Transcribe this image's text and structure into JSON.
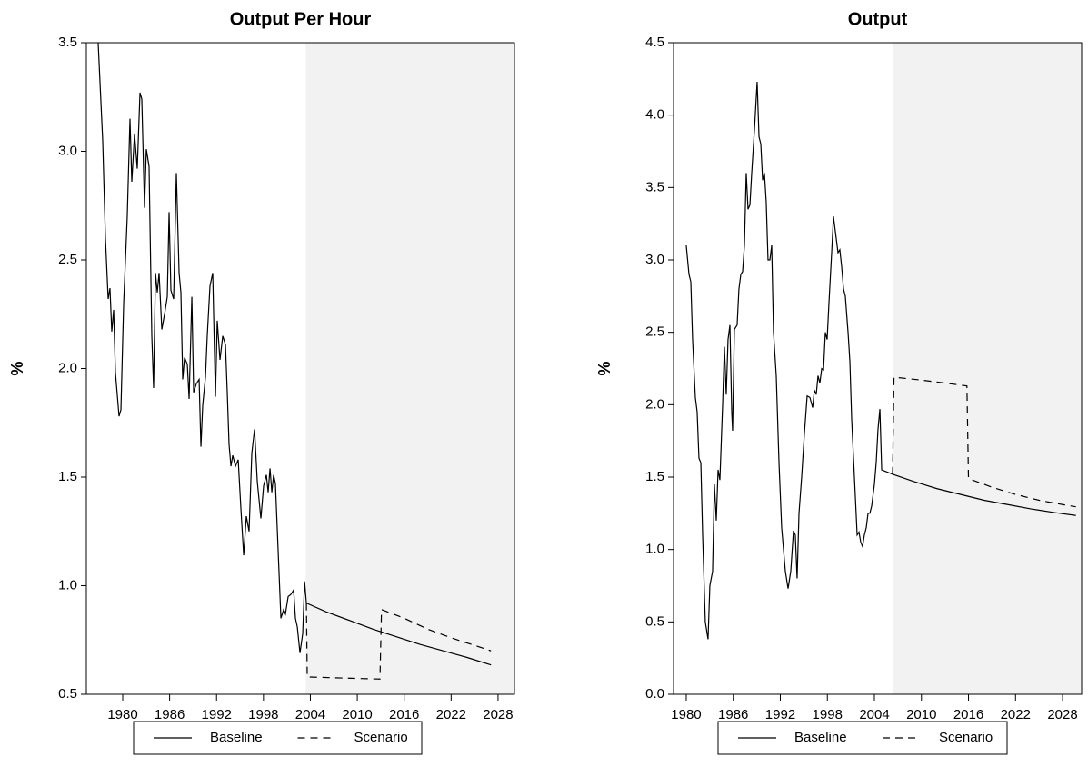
{
  "chart_data": [
    {
      "type": "line",
      "title": "Output Per Hour",
      "y_label": "%",
      "xlim": [
        1975.35,
        2030.1
      ],
      "ylim": [
        0.5,
        3.5
      ],
      "xticks": [
        1980,
        1986,
        1992,
        1998,
        2004,
        2010,
        2016,
        2022,
        2028
      ],
      "yticks": [
        0.5,
        {
          "value": 1,
          "label": "1.0"
        },
        1.5,
        {
          "value": 2,
          "label": "2.0"
        },
        2.5,
        {
          "value": 3,
          "label": "3.0"
        },
        3.5
      ],
      "shade_start": 2003.4,
      "legend": "bottom",
      "series": [
        {
          "name": "Baseline",
          "color": "#000000",
          "dash": "none",
          "x": [
            1976.86,
            1977.44,
            1977.79,
            1978.14,
            1978.37,
            1978.6,
            1978.84,
            1979.07,
            1979.53,
            1979.77,
            1980.12,
            1980.58,
            1980.93,
            1981.16,
            1981.51,
            1981.86,
            1982.21,
            1982.44,
            1982.79,
            1983.02,
            1983.37,
            1983.72,
            1983.95,
            1984.19,
            1984.42,
            1984.65,
            1985,
            1985.35,
            1985.7,
            1985.93,
            1986.16,
            1986.51,
            1986.86,
            1987.21,
            1987.44,
            1987.67,
            1987.91,
            1988.26,
            1988.49,
            1988.84,
            1989.07,
            1989.42,
            1989.77,
            1990,
            1990.23,
            1990.58,
            1990.81,
            1991.16,
            1991.51,
            1991.86,
            1992.09,
            1992.44,
            1992.79,
            1993.14,
            1993.37,
            1993.6,
            1993.84,
            1994.07,
            1994.42,
            1994.77,
            1995.12,
            1995.47,
            1995.81,
            1996.16,
            1996.51,
            1996.86,
            1997.21,
            1997.67,
            1998.02,
            1998.37,
            1998.6,
            1998.84,
            1999.07,
            1999.3,
            1999.53,
            1999.88,
            2000.23,
            2000.58,
            2000.81,
            2001.16,
            2001.51,
            2001.86,
            2002.09,
            2002.33,
            2002.67,
            2003.02,
            2003.26,
            2003.49,
            2006,
            2009,
            2012,
            2015,
            2018,
            2021,
            2024,
            2027.1
          ],
          "values": [
            3.5,
            3.05,
            2.6,
            2.32,
            2.37,
            2.17,
            2.27,
            1.98,
            1.78,
            1.81,
            2.3,
            2.7,
            3.15,
            2.86,
            3.08,
            2.92,
            3.27,
            3.24,
            2.74,
            3.01,
            2.93,
            2.15,
            1.91,
            2.44,
            2.35,
            2.44,
            2.18,
            2.25,
            2.33,
            2.72,
            2.36,
            2.32,
            2.9,
            2.44,
            2.35,
            1.95,
            2.05,
            2.02,
            1.86,
            2.33,
            1.89,
            1.93,
            1.95,
            1.64,
            1.83,
            1.96,
            2.15,
            2.38,
            2.44,
            1.87,
            2.22,
            2.04,
            2.15,
            2.11,
            1.89,
            1.65,
            1.55,
            1.6,
            1.55,
            1.58,
            1.35,
            1.14,
            1.32,
            1.25,
            1.61,
            1.72,
            1.48,
            1.31,
            1.46,
            1.51,
            1.43,
            1.54,
            1.43,
            1.51,
            1.47,
            1.16,
            0.85,
            0.89,
            0.87,
            0.95,
            0.96,
            0.98,
            0.85,
            0.81,
            0.69,
            0.78,
            1.02,
            0.92,
            0.88,
            0.84,
            0.8,
            0.765,
            0.73,
            0.7,
            0.67,
            0.635
          ]
        },
        {
          "name": "Scenario",
          "color": "#000000",
          "dash": "8 6",
          "x": [
            2003.49,
            2003.6,
            2008,
            2012.9,
            2013.1,
            2016,
            2019,
            2022,
            2025,
            2027.1
          ],
          "values": [
            0.92,
            0.58,
            0.575,
            0.57,
            0.89,
            0.85,
            0.8,
            0.76,
            0.725,
            0.7
          ]
        }
      ]
    },
    {
      "type": "line",
      "title": "Output",
      "y_label": "%",
      "xlim": [
        1978.38,
        2030.43
      ],
      "ylim": [
        0,
        4.5
      ],
      "xticks": [
        1980,
        1986,
        1992,
        1998,
        2004,
        2010,
        2016,
        2022,
        2028
      ],
      "yticks": [
        {
          "value": 0,
          "label": "0.0"
        },
        0.5,
        {
          "value": 1,
          "label": "1.0"
        },
        1.5,
        {
          "value": 2,
          "label": "2.0"
        },
        2.5,
        {
          "value": 3,
          "label": "3.0"
        },
        3.5,
        {
          "value": 4,
          "label": "4.0"
        },
        4.5
      ],
      "shade_start": 2006.32,
      "legend": "bottom",
      "series": [
        {
          "name": "Baseline",
          "color": "#000000",
          "dash": "none",
          "x": [
            1980,
            1980.35,
            1980.58,
            1980.81,
            1981.16,
            1981.39,
            1981.62,
            1981.86,
            1982.09,
            1982.43,
            1982.78,
            1983.01,
            1983.36,
            1983.59,
            1983.83,
            1984.06,
            1984.29,
            1984.64,
            1984.87,
            1985.1,
            1985.33,
            1985.57,
            1985.8,
            1985.91,
            1986.14,
            1986.49,
            1986.72,
            1986.96,
            1987.19,
            1987.42,
            1987.65,
            1987.88,
            1988.12,
            1988.35,
            1988.7,
            1989.04,
            1989.28,
            1989.51,
            1989.74,
            1989.97,
            1990.2,
            1990.43,
            1990.67,
            1990.9,
            1991.13,
            1991.48,
            1991.83,
            1992.17,
            1992.64,
            1992.99,
            1993.33,
            1993.68,
            1993.91,
            1994.14,
            1994.38,
            1994.72,
            1995.07,
            1995.42,
            1995.77,
            1996.12,
            1996.35,
            1996.58,
            1996.81,
            1997.04,
            1997.28,
            1997.51,
            1997.74,
            1997.97,
            1998.2,
            1998.55,
            1998.78,
            1999.01,
            1999.36,
            1999.59,
            1999.83,
            2000.06,
            2000.29,
            2000.64,
            2000.87,
            2001.1,
            2001.45,
            2001.8,
            2002.03,
            2002.26,
            2002.49,
            2002.72,
            2002.96,
            2003.19,
            2003.42,
            2003.65,
            2004,
            2004.23,
            2004.46,
            2004.7,
            2004.93,
            2006.32,
            2009,
            2012,
            2015,
            2018,
            2021,
            2024,
            2027,
            2029.7
          ],
          "values": [
            3.1,
            2.9,
            2.85,
            2.45,
            2.05,
            1.95,
            1.63,
            1.6,
            1.1,
            0.5,
            0.38,
            0.75,
            0.85,
            1.45,
            1.2,
            1.55,
            1.48,
            2,
            2.4,
            2.07,
            2.45,
            2.55,
            1.95,
            1.82,
            2.52,
            2.55,
            2.8,
            2.9,
            2.92,
            3.1,
            3.6,
            3.35,
            3.38,
            3.6,
            3.9,
            4.23,
            3.85,
            3.8,
            3.55,
            3.6,
            3.4,
            3,
            3,
            3.1,
            2.5,
            2.2,
            1.6,
            1.15,
            0.85,
            0.73,
            0.85,
            1.13,
            1.1,
            0.8,
            1.25,
            1.5,
            1.8,
            2.06,
            2.05,
            1.98,
            2.1,
            2.07,
            2.2,
            2.15,
            2.25,
            2.24,
            2.5,
            2.45,
            2.7,
            3.05,
            3.3,
            3.2,
            3.05,
            3.07,
            2.95,
            2.8,
            2.75,
            2.5,
            2.3,
            1.9,
            1.5,
            1.1,
            1.12,
            1.05,
            1.02,
            1.1,
            1.15,
            1.25,
            1.25,
            1.3,
            1.45,
            1.6,
            1.83,
            1.97,
            1.55,
            1.52,
            1.47,
            1.42,
            1.38,
            1.34,
            1.31,
            1.28,
            1.255,
            1.235
          ]
        },
        {
          "name": "Scenario",
          "color": "#000000",
          "dash": "8 6",
          "x": [
            2006.32,
            2006.5,
            2010,
            2015.8,
            2016,
            2019,
            2022,
            2025,
            2028,
            2029.7
          ],
          "values": [
            1.52,
            2.19,
            2.17,
            2.13,
            1.49,
            1.43,
            1.38,
            1.34,
            1.31,
            1.295
          ]
        }
      ]
    }
  ]
}
